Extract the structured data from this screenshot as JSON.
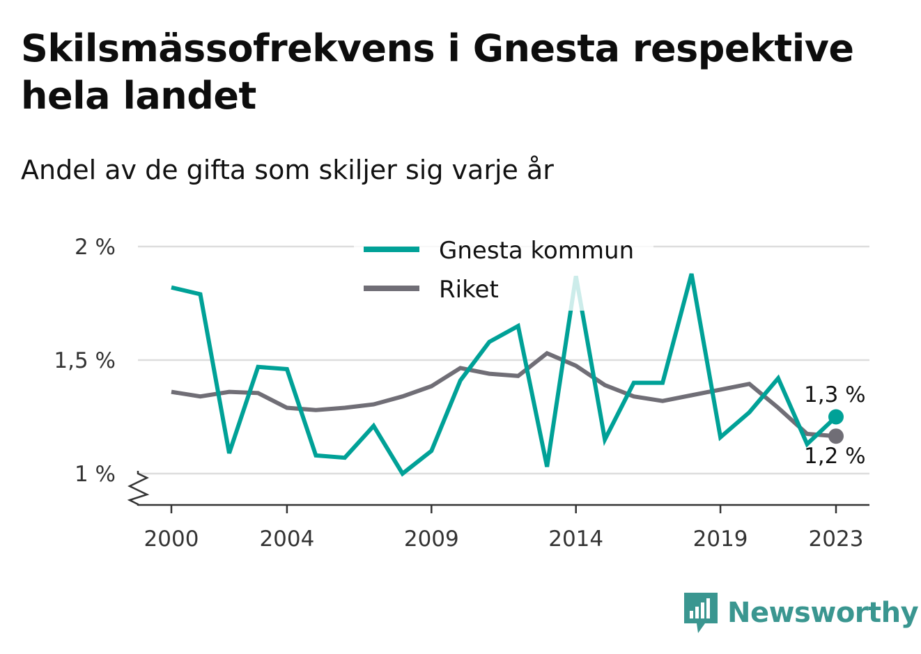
{
  "title": "Skilsmässofrekvens i Gnesta respektive hela landet",
  "subtitle": "Andel av de gifta som skiljer sig varje år",
  "brand": "Newsworthy",
  "chart_data": {
    "type": "line",
    "title": "Skilsmässofrekvens i Gnesta respektive hela landet",
    "subtitle": "Andel av de gifta som skiljer sig varje år",
    "x": [
      2000,
      2001,
      2002,
      2003,
      2004,
      2005,
      2006,
      2007,
      2008,
      2009,
      2010,
      2011,
      2012,
      2013,
      2014,
      2015,
      2016,
      2017,
      2018,
      2019,
      2020,
      2021,
      2022,
      2023
    ],
    "x_ticks": [
      2000,
      2004,
      2009,
      2014,
      2019,
      2023
    ],
    "x_tick_labels": [
      "2000",
      "2004",
      "2009",
      "2014",
      "2019",
      "2023"
    ],
    "y_ticks": [
      1,
      1.5,
      2
    ],
    "y_tick_labels": [
      "1 %",
      "1,5 %",
      "2 %"
    ],
    "ylim": [
      0.86,
      2.0
    ],
    "grid": true,
    "axis_break": true,
    "legend_position": "top-center",
    "series": [
      {
        "name": "Gnesta kommun",
        "color": "#00a197",
        "values": [
          1.82,
          1.79,
          1.09,
          1.47,
          1.46,
          1.08,
          1.07,
          1.21,
          1.0,
          1.1,
          1.41,
          1.58,
          1.65,
          1.03,
          1.87,
          1.15,
          1.4,
          1.4,
          1.88,
          1.16,
          1.27,
          1.42,
          1.13,
          1.25
        ],
        "end_label": "1,3 %"
      },
      {
        "name": "Riket",
        "color": "#706e76",
        "values": [
          1.36,
          1.34,
          1.36,
          1.355,
          1.29,
          1.28,
          1.29,
          1.305,
          1.34,
          1.385,
          1.465,
          1.44,
          1.43,
          1.53,
          1.475,
          1.39,
          1.34,
          1.32,
          1.345,
          1.37,
          1.395,
          1.29,
          1.175,
          1.165
        ],
        "end_label": "1,2 %"
      }
    ]
  }
}
